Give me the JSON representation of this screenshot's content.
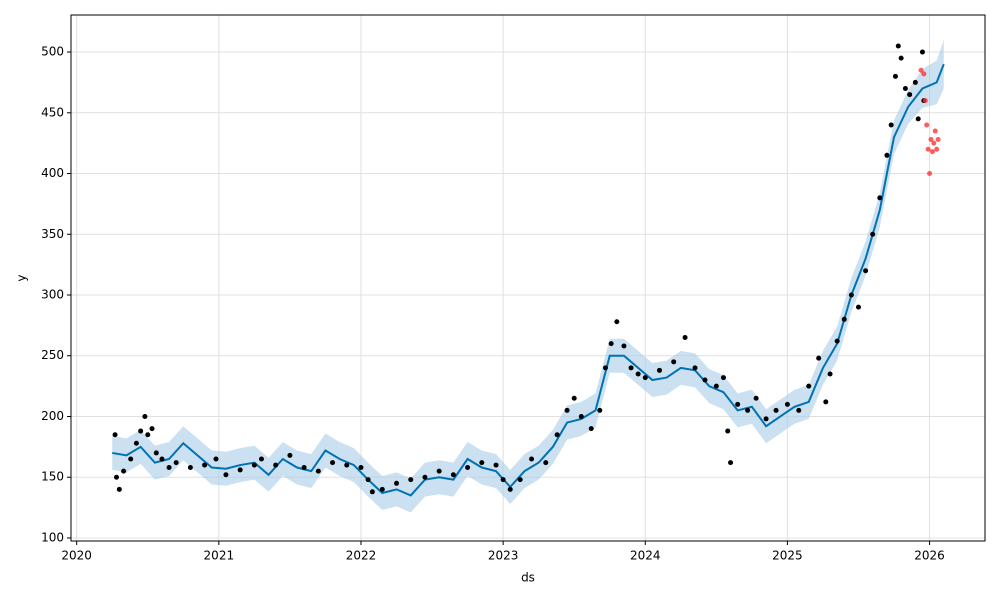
{
  "chart_data": {
    "type": "forecast",
    "xlabel": "ds",
    "ylabel": "y",
    "xlim": [
      2019.96,
      2026.39
    ],
    "ylim": [
      97.5,
      530.5
    ],
    "xticks": [
      2020,
      2021,
      2022,
      2023,
      2024,
      2025,
      2026
    ],
    "yticks": [
      100,
      150,
      200,
      250,
      300,
      350,
      400,
      450,
      500
    ],
    "grid": true,
    "forecast": {
      "color": "#0072b2",
      "band_color": "#a8cde8",
      "x": [
        2020.25,
        2020.35,
        2020.45,
        2020.55,
        2020.65,
        2020.75,
        2020.85,
        2020.95,
        2021.05,
        2021.15,
        2021.25,
        2021.35,
        2021.45,
        2021.55,
        2021.65,
        2021.75,
        2021.85,
        2021.95,
        2022.05,
        2022.15,
        2022.25,
        2022.35,
        2022.45,
        2022.55,
        2022.65,
        2022.75,
        2022.85,
        2022.95,
        2023.05,
        2023.15,
        2023.25,
        2023.35,
        2023.45,
        2023.55,
        2023.65,
        2023.75,
        2023.85,
        2023.95,
        2024.05,
        2024.15,
        2024.25,
        2024.35,
        2024.45,
        2024.55,
        2024.65,
        2024.75,
        2024.85,
        2024.95,
        2025.05,
        2025.15,
        2025.25,
        2025.35,
        2025.45,
        2025.55,
        2025.65,
        2025.75,
        2025.85,
        2025.95,
        2026.05,
        2026.1
      ],
      "values": [
        170,
        168,
        175,
        162,
        165,
        178,
        168,
        158,
        157,
        160,
        162,
        152,
        165,
        158,
        155,
        172,
        165,
        160,
        148,
        137,
        140,
        135,
        148,
        150,
        148,
        165,
        158,
        155,
        142,
        155,
        162,
        175,
        195,
        198,
        205,
        250,
        250,
        240,
        230,
        232,
        240,
        238,
        225,
        220,
        205,
        208,
        192,
        200,
        208,
        212,
        240,
        260,
        300,
        330,
        370,
        430,
        455,
        470,
        475,
        490
      ],
      "upper": [
        184,
        182,
        189,
        176,
        179,
        192,
        182,
        172,
        171,
        174,
        176,
        166,
        179,
        172,
        169,
        186,
        179,
        174,
        162,
        151,
        154,
        149,
        162,
        164,
        162,
        179,
        172,
        169,
        156,
        169,
        176,
        189,
        209,
        212,
        219,
        264,
        264,
        254,
        244,
        246,
        254,
        252,
        239,
        234,
        219,
        222,
        206,
        214,
        222,
        226,
        254,
        274,
        314,
        344,
        384,
        444,
        469,
        486,
        493,
        510
      ],
      "lower": [
        156,
        154,
        161,
        148,
        151,
        164,
        154,
        144,
        143,
        146,
        148,
        138,
        151,
        144,
        141,
        158,
        151,
        146,
        134,
        123,
        126,
        121,
        134,
        136,
        134,
        151,
        144,
        141,
        128,
        141,
        148,
        161,
        181,
        184,
        191,
        236,
        236,
        226,
        216,
        218,
        226,
        224,
        211,
        206,
        191,
        194,
        178,
        186,
        194,
        198,
        226,
        246,
        286,
        316,
        356,
        416,
        441,
        454,
        457,
        470
      ]
    },
    "observed": {
      "color": "#000000",
      "x": [
        2020.27,
        2020.28,
        2020.3,
        2020.33,
        2020.38,
        2020.42,
        2020.45,
        2020.48,
        2020.5,
        2020.53,
        2020.56,
        2020.6,
        2020.65,
        2020.7,
        2020.8,
        2020.9,
        2020.98,
        2021.05,
        2021.15,
        2021.25,
        2021.3,
        2021.4,
        2021.5,
        2021.6,
        2021.7,
        2021.8,
        2021.9,
        2022.0,
        2022.05,
        2022.08,
        2022.15,
        2022.25,
        2022.35,
        2022.45,
        2022.55,
        2022.65,
        2022.75,
        2022.85,
        2022.95,
        2023.0,
        2023.05,
        2023.12,
        2023.2,
        2023.3,
        2023.38,
        2023.45,
        2023.5,
        2023.55,
        2023.62,
        2023.68,
        2023.72,
        2023.76,
        2023.8,
        2023.85,
        2023.9,
        2023.95,
        2024.0,
        2024.1,
        2024.2,
        2024.28,
        2024.35,
        2024.42,
        2024.5,
        2024.55,
        2024.58,
        2024.6,
        2024.65,
        2024.72,
        2024.78,
        2024.85,
        2024.92,
        2025.0,
        2025.08,
        2025.15,
        2025.22,
        2025.27,
        2025.3,
        2025.35,
        2025.4,
        2025.45,
        2025.5,
        2025.55,
        2025.6,
        2025.65,
        2025.7,
        2025.73,
        2025.76,
        2025.78,
        2025.8,
        2025.83,
        2025.86,
        2025.9,
        2025.92,
        2025.95,
        2025.96
      ],
      "values": [
        185,
        150,
        140,
        155,
        165,
        178,
        188,
        200,
        185,
        190,
        170,
        165,
        158,
        162,
        158,
        160,
        165,
        152,
        156,
        160,
        165,
        160,
        168,
        158,
        155,
        162,
        160,
        158,
        148,
        138,
        140,
        145,
        148,
        150,
        155,
        152,
        158,
        162,
        160,
        148,
        140,
        148,
        165,
        162,
        185,
        205,
        215,
        200,
        190,
        205,
        240,
        260,
        278,
        258,
        240,
        235,
        232,
        238,
        245,
        265,
        240,
        230,
        225,
        232,
        188,
        162,
        210,
        205,
        215,
        198,
        205,
        210,
        205,
        225,
        248,
        212,
        235,
        262,
        280,
        300,
        290,
        320,
        350,
        380,
        415,
        440,
        480,
        505,
        495,
        470,
        465,
        475,
        445,
        500,
        460
      ]
    },
    "outliers": {
      "color": "#ff3333",
      "x": [
        2025.94,
        2025.96,
        2025.97,
        2025.98,
        2025.99,
        2026.0,
        2026.01,
        2026.02,
        2026.03,
        2026.04,
        2026.05,
        2026.06
      ],
      "values": [
        485,
        482,
        460,
        440,
        420,
        400,
        428,
        418,
        425,
        435,
        420,
        428
      ]
    }
  }
}
